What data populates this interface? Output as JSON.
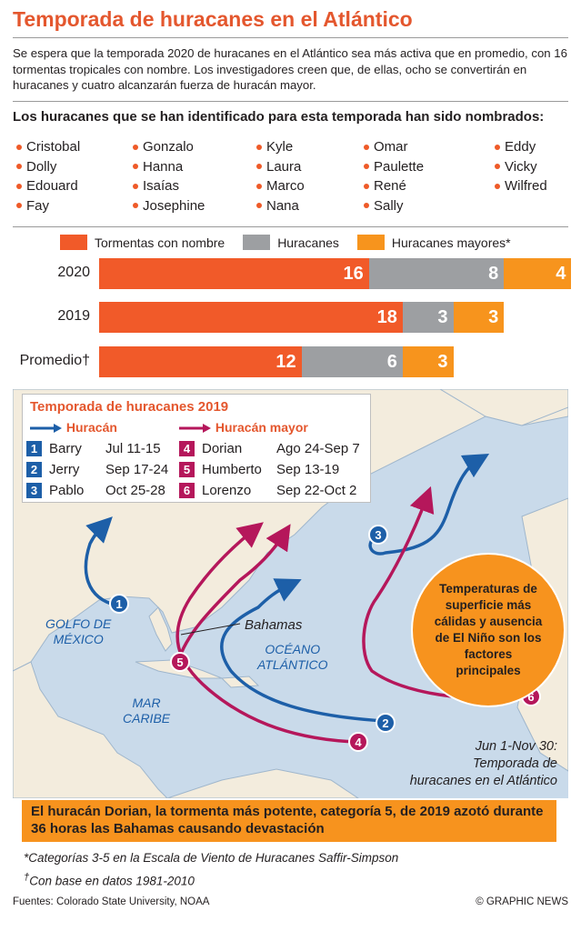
{
  "title": "Temporada de huracanes en el Atlántico",
  "intro": "Se espera que la temporada 2020 de huracanes en el Atlántico sea más activa que en promedio, con 16 tormentas tropicales con nombre. Los investigadores creen que, de ellas, ocho se convertirán en huracanes y cuatro alcanzarán fuerza de huracán mayor.",
  "names_title": "Los huracanes que se han identificado para esta temporada han sido nombrados:",
  "names": [
    [
      "Cristobal",
      "Dolly",
      "Edouard",
      "Fay"
    ],
    [
      "Gonzalo",
      "Hanna",
      "Isaías",
      "Josephine"
    ],
    [
      "Kyle",
      "Laura",
      "Marco",
      "Nana"
    ],
    [
      "Omar",
      "Paulette",
      "René",
      "Sally"
    ],
    [
      "Eddy",
      "Vicky",
      "Wilfred"
    ]
  ],
  "colors": {
    "named": "#f15a29",
    "hurricanes": "#9d9fa2",
    "major": "#f7941d",
    "hurricane_track": "#1d5fa8",
    "major_track": "#b5175b",
    "title": "#e4572e"
  },
  "chart_data": {
    "type": "bar",
    "stacked": true,
    "categories": [
      "2020",
      "2019",
      "Promedio†"
    ],
    "series": [
      {
        "name": "Tormentas con nombre",
        "values": [
          16,
          18,
          12
        ]
      },
      {
        "name": "Huracanes",
        "values": [
          8,
          3,
          6
        ]
      },
      {
        "name": "Huracanes mayores*",
        "values": [
          4,
          3,
          3
        ]
      }
    ]
  },
  "key": {
    "title": "Temporada de huracanes 2019",
    "hurricane_label": "Huracán",
    "major_label": "Huracán mayor",
    "hurricanes": [
      {
        "num": "1",
        "name": "Barry",
        "dates": "Jul 11-15"
      },
      {
        "num": "2",
        "name": "Jerry",
        "dates": "Sep 17-24"
      },
      {
        "num": "3",
        "name": "Pablo",
        "dates": "Oct 25-28"
      }
    ],
    "majors": [
      {
        "num": "4",
        "name": "Dorian",
        "dates": "Ago 24-Sep 7"
      },
      {
        "num": "5",
        "name": "Humberto",
        "dates": "Sep 13-19"
      },
      {
        "num": "6",
        "name": "Lorenzo",
        "dates": "Sep 22-Oct 2"
      }
    ]
  },
  "map_labels": {
    "gulf": "GOLFO DE\nMÉXICO",
    "caribbean": "MAR\nCARIBE",
    "atlantic": "OCÉANO\nATLÁNTICO",
    "bahamas": "Bahamas"
  },
  "callout": "Temperaturas de superficie más cálidas y ausencia de El Niño son los factores principales",
  "season_note": "Jun 1-Nov 30:\nTemporada de\nhuracanes en el Atlántico",
  "banner": "El huracán Dorian, la tormenta más potente, categoría 5, de 2019 azotó durante 36 horas las Bahamas causando devastación",
  "footnote_star": "*Categorías 3-5 en la Escala de Viento de Huracanes Saffir-Simpson",
  "footnote_dagger_mark": "†",
  "footnote_dagger": "Con base en datos 1981-2010",
  "source": "Fuentes: Colorado State University, NOAA",
  "credit": "© GRAPHIC NEWS"
}
